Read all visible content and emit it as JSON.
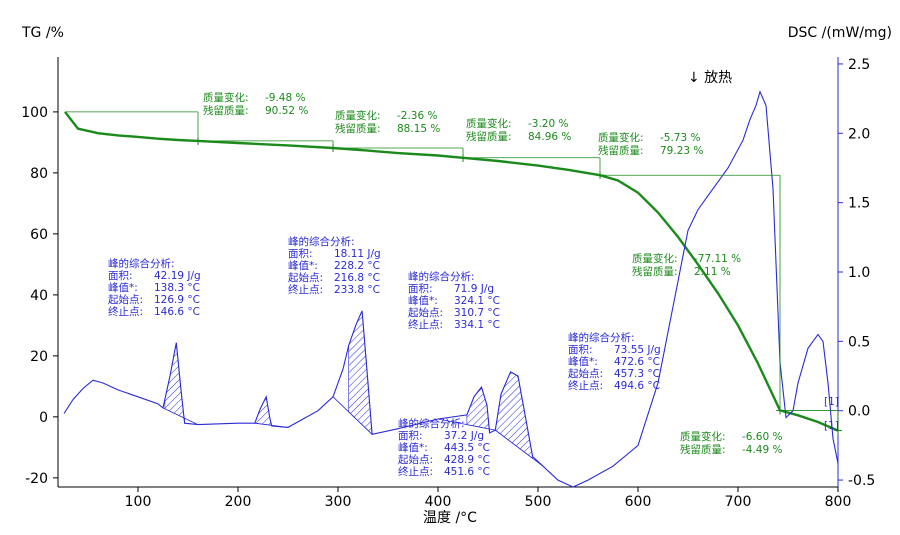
{
  "chart_data": {
    "type": "line",
    "title": "",
    "xlabel": "温度 /°C",
    "ylabel_left": "TG /%",
    "ylabel_right": "DSC /(mW/mg)",
    "exo_label": "↓ 放热",
    "xlim": [
      20,
      800
    ],
    "xticks": [
      100,
      200,
      300,
      400,
      500,
      600,
      700,
      800
    ],
    "ylim_left": [
      -23,
      118
    ],
    "yticks_left": [
      -20,
      0,
      20,
      40,
      60,
      80,
      100
    ],
    "ylim_right": [
      -0.55,
      2.55
    ],
    "yticks_right": [
      -0.5,
      0.0,
      0.5,
      1.0,
      1.5,
      2.0,
      2.5
    ],
    "colors": {
      "tg": "#1a8a1a",
      "dsc": "#2a2ad6",
      "axis_left": "#000000",
      "axis_right": "#2a2ad6"
    },
    "series": [
      {
        "name": "TG",
        "axis": "left",
        "color": "#1a8a1a",
        "x": [
          27,
          40,
          60,
          80,
          100,
          120,
          140,
          160,
          200,
          250,
          295,
          330,
          360,
          400,
          425,
          460,
          500,
          530,
          562,
          580,
          600,
          620,
          640,
          660,
          680,
          700,
          720,
          742,
          760,
          780,
          800
        ],
        "y": [
          100,
          94.5,
          93.0,
          92.3,
          91.8,
          91.2,
          90.8,
          90.5,
          89.8,
          89.0,
          88.15,
          87.3,
          86.5,
          85.7,
          84.96,
          83.9,
          82.4,
          81.0,
          79.23,
          77.5,
          73.5,
          67.0,
          59.0,
          50.0,
          40.5,
          30.0,
          17.5,
          2.11,
          0.5,
          -1.7,
          -4.49
        ]
      },
      {
        "name": "DSC",
        "axis": "right",
        "color": "#2a2ad6",
        "x": [
          26,
          35,
          45,
          55,
          65,
          80,
          100,
          120,
          125,
          132,
          138.3,
          143,
          146.6,
          160,
          200,
          216.8,
          222,
          228.2,
          232,
          233.8,
          250,
          280,
          295,
          305,
          310.7,
          318,
          324.1,
          330,
          334.1,
          360,
          400,
          428.9,
          436,
          443.5,
          449,
          451.6,
          457.3,
          463,
          472.6,
          480,
          494.6,
          505,
          520,
          535,
          550,
          575,
          600,
          620,
          635,
          650,
          660,
          670,
          690,
          705,
          712,
          718,
          722,
          728,
          735,
          742,
          748,
          755,
          760,
          770,
          780,
          785,
          790,
          795,
          800
        ],
        "y": [
          -0.02,
          0.08,
          0.16,
          0.22,
          0.2,
          0.15,
          0.1,
          0.05,
          0.02,
          0.25,
          0.49,
          0.15,
          -0.09,
          -0.1,
          -0.09,
          -0.09,
          0.01,
          0.1,
          -0.06,
          -0.11,
          -0.12,
          0.0,
          0.1,
          0.3,
          0.47,
          0.62,
          0.72,
          0.2,
          -0.17,
          -0.13,
          -0.06,
          -0.03,
          0.1,
          0.17,
          0.04,
          -0.16,
          -0.14,
          0.12,
          0.28,
          0.25,
          -0.33,
          -0.4,
          -0.5,
          -0.55,
          -0.5,
          -0.4,
          -0.25,
          0.2,
          0.75,
          1.3,
          1.45,
          1.55,
          1.75,
          1.95,
          2.1,
          2.2,
          2.3,
          2.2,
          1.6,
          0.35,
          -0.05,
          0.0,
          0.2,
          0.45,
          0.55,
          0.5,
          0.2,
          -0.2,
          -0.38
        ]
      }
    ],
    "tg_steps": [
      {
        "change": "-9.48 %",
        "residual": "90.52 %"
      },
      {
        "change": "-2.36 %",
        "residual": "88.15 %"
      },
      {
        "change": "-3.20 %",
        "residual": "84.96 %"
      },
      {
        "change": "-5.73 %",
        "residual": "79.23 %"
      },
      {
        "change": "-77.11 %",
        "residual": "2.11 %"
      },
      {
        "change": "-6.60 %",
        "residual": "-4.49 %"
      }
    ],
    "tg_step_labels": {
      "change": "质量变化:",
      "residual": "残留质量:"
    },
    "peaks": [
      {
        "area": "42.19 J/g",
        "peak": "138.3 °C",
        "onset": "126.9 °C",
        "end": "146.6 °C"
      },
      {
        "area": "18.11 J/g",
        "peak": "228.2 °C",
        "onset": "216.8 °C",
        "end": "233.8 °C"
      },
      {
        "area": "71.9 J/g",
        "peak": "324.1 °C",
        "onset": "310.7 °C",
        "end": "334.1 °C"
      },
      {
        "area": "37.2 J/g",
        "peak": "443.5 °C",
        "onset": "428.9 °C",
        "end": "451.6 °C"
      },
      {
        "area": "73.55 J/g",
        "peak": "472.6 °C",
        "onset": "457.3 °C",
        "end": "494.6 °C"
      }
    ],
    "peak_labels": {
      "title": "峰的综合分析:",
      "area": "面积:",
      "peak": "峰值*:",
      "onset": "起始点:",
      "end": "终止点:"
    },
    "markers": [
      "[1]",
      "[1]"
    ]
  }
}
